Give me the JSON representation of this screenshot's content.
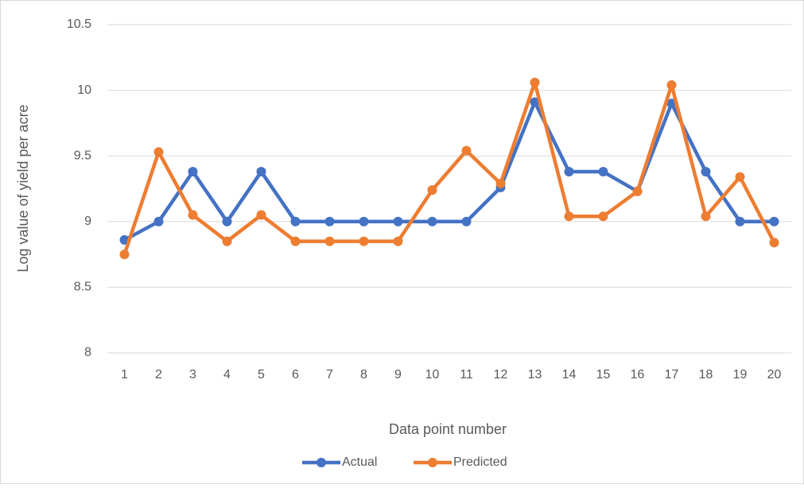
{
  "chart_data": {
    "type": "line",
    "x_label": "Data point number",
    "y_label": "Log value of yield per acre",
    "categories": [
      "1",
      "2",
      "3",
      "4",
      "5",
      "6",
      "7",
      "8",
      "9",
      "10",
      "11",
      "12",
      "13",
      "14",
      "15",
      "16",
      "17",
      "18",
      "19",
      "20"
    ],
    "series": [
      {
        "name": "Actual",
        "color": "#4472c4",
        "values": [
          8.86,
          9.0,
          9.38,
          9.0,
          9.38,
          9.0,
          9.0,
          9.0,
          9.0,
          9.0,
          9.0,
          9.26,
          9.91,
          9.38,
          9.38,
          9.23,
          9.9,
          9.38,
          9.0,
          9.0
        ]
      },
      {
        "name": "Predicted",
        "color": "#ed7d31",
        "values": [
          8.75,
          9.53,
          9.05,
          8.85,
          9.05,
          8.85,
          8.85,
          8.85,
          8.85,
          9.24,
          9.54,
          9.29,
          10.06,
          9.04,
          9.04,
          9.23,
          10.04,
          9.04,
          9.34,
          8.84
        ]
      }
    ],
    "ylim": [
      8,
      10.5
    ],
    "yticks": [
      8,
      8.5,
      9,
      9.5,
      10,
      10.5
    ],
    "grid": true,
    "legend": "bottom"
  }
}
